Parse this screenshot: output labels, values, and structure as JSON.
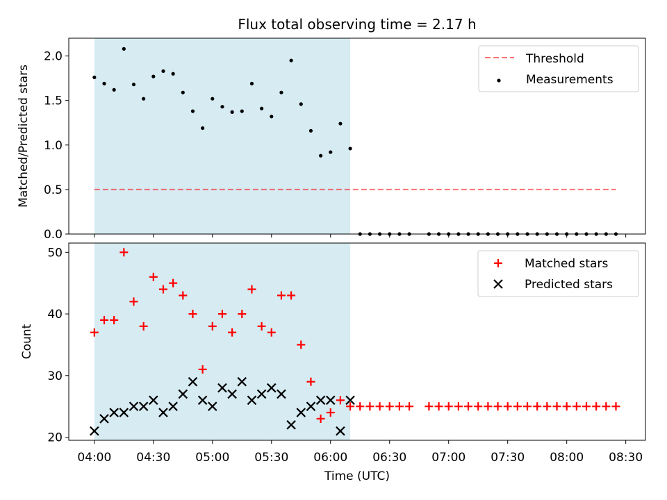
{
  "chart_data": {
    "title": "Flux total observing time = 2.17 h",
    "xlabel": "Time (UTC)",
    "x_tick_labels": [
      "04:00",
      "04:30",
      "05:00",
      "05:30",
      "06:00",
      "06:30",
      "07:00",
      "07:30",
      "08:00",
      "08:30"
    ],
    "x_tick_values": [
      "04:00",
      "04:30",
      "05:00",
      "05:30",
      "06:00",
      "06:30",
      "07:00",
      "07:30",
      "08:00",
      "08:30"
    ],
    "xlim": [
      "03:47",
      "08:40"
    ],
    "shaded_interval": {
      "start": "04:00",
      "end": "06:10",
      "color": "#add8e6"
    },
    "panels": [
      {
        "type": "scatter",
        "ylabel": "Matched/Predicted stars",
        "ylim": [
          0,
          2.2
        ],
        "y_ticks": [
          0.0,
          0.5,
          1.0,
          1.5,
          2.0
        ],
        "y_tick_labels": [
          "0.0",
          "0.5",
          "1.0",
          "1.5",
          "2.0"
        ],
        "legend_position": "top-right",
        "threshold": {
          "name": "Threshold",
          "value": 0.5,
          "x_start": "04:00",
          "x_end": "08:25",
          "color": "#ff0000"
        },
        "series": [
          {
            "name": "Measurements",
            "color": "#000000",
            "x": [
              "04:00",
              "04:05",
              "04:10",
              "04:15",
              "04:20",
              "04:25",
              "04:30",
              "04:35",
              "04:40",
              "04:45",
              "04:50",
              "04:55",
              "05:00",
              "05:05",
              "05:10",
              "05:15",
              "05:20",
              "05:25",
              "05:30",
              "05:35",
              "05:40",
              "05:45",
              "05:50",
              "05:55",
              "06:00",
              "06:05",
              "06:10",
              "06:15",
              "06:20",
              "06:25",
              "06:30",
              "06:35",
              "06:40",
              "06:50",
              "06:55",
              "07:00",
              "07:05",
              "07:10",
              "07:15",
              "07:20",
              "07:25",
              "07:30",
              "07:35",
              "07:40",
              "07:45",
              "07:50",
              "07:55",
              "08:00",
              "08:05",
              "08:10",
              "08:15",
              "08:20",
              "08:25"
            ],
            "y": [
              1.76,
              1.69,
              1.62,
              2.08,
              1.68,
              1.52,
              1.77,
              1.83,
              1.8,
              1.59,
              1.38,
              1.19,
              1.52,
              1.43,
              1.37,
              1.38,
              1.69,
              1.41,
              1.32,
              1.59,
              1.95,
              1.46,
              1.16,
              0.88,
              0.92,
              1.24,
              0.96,
              0,
              0,
              0,
              0,
              0,
              0,
              0,
              0,
              0,
              0,
              0,
              0,
              0,
              0,
              0,
              0,
              0,
              0,
              0,
              0,
              0,
              0,
              0,
              0,
              0,
              0
            ]
          }
        ]
      },
      {
        "type": "scatter",
        "ylabel": "Count",
        "ylim": [
          19.5,
          51.5
        ],
        "y_ticks": [
          20,
          30,
          40,
          50
        ],
        "y_tick_labels": [
          "20",
          "30",
          "40",
          "50"
        ],
        "legend_position": "top-right",
        "series": [
          {
            "name": "Matched stars",
            "marker": "plus",
            "color": "#ff0000",
            "x": [
              "04:00",
              "04:05",
              "04:10",
              "04:15",
              "04:20",
              "04:25",
              "04:30",
              "04:35",
              "04:40",
              "04:45",
              "04:50",
              "04:55",
              "05:00",
              "05:05",
              "05:10",
              "05:15",
              "05:20",
              "05:25",
              "05:30",
              "05:35",
              "05:40",
              "05:45",
              "05:50",
              "05:55",
              "06:00",
              "06:05",
              "06:10",
              "06:15",
              "06:20",
              "06:25",
              "06:30",
              "06:35",
              "06:40",
              "06:50",
              "06:55",
              "07:00",
              "07:05",
              "07:10",
              "07:15",
              "07:20",
              "07:25",
              "07:30",
              "07:35",
              "07:40",
              "07:45",
              "07:50",
              "07:55",
              "08:00",
              "08:05",
              "08:10",
              "08:15",
              "08:20",
              "08:25"
            ],
            "y": [
              37,
              39,
              39,
              50,
              42,
              38,
              46,
              44,
              45,
              43,
              40,
              31,
              38,
              40,
              37,
              40,
              44,
              38,
              37,
              43,
              43,
              35,
              29,
              23,
              24,
              26,
              25,
              25,
              25,
              25,
              25,
              25,
              25,
              25,
              25,
              25,
              25,
              25,
              25,
              25,
              25,
              25,
              25,
              25,
              25,
              25,
              25,
              25,
              25,
              25,
              25,
              25,
              25
            ]
          },
          {
            "name": "Predicted stars",
            "marker": "x",
            "color": "#000000",
            "x": [
              "04:00",
              "04:05",
              "04:10",
              "04:15",
              "04:20",
              "04:25",
              "04:30",
              "04:35",
              "04:40",
              "04:45",
              "04:50",
              "04:55",
              "05:00",
              "05:05",
              "05:10",
              "05:15",
              "05:20",
              "05:25",
              "05:30",
              "05:35",
              "05:40",
              "05:45",
              "05:50",
              "05:55",
              "06:00",
              "06:05",
              "06:10"
            ],
            "y": [
              21,
              23,
              24,
              24,
              25,
              25,
              26,
              24,
              25,
              27,
              29,
              26,
              25,
              28,
              27,
              29,
              26,
              27,
              28,
              27,
              22,
              24,
              25,
              26,
              26,
              21,
              26
            ]
          }
        ]
      }
    ]
  }
}
